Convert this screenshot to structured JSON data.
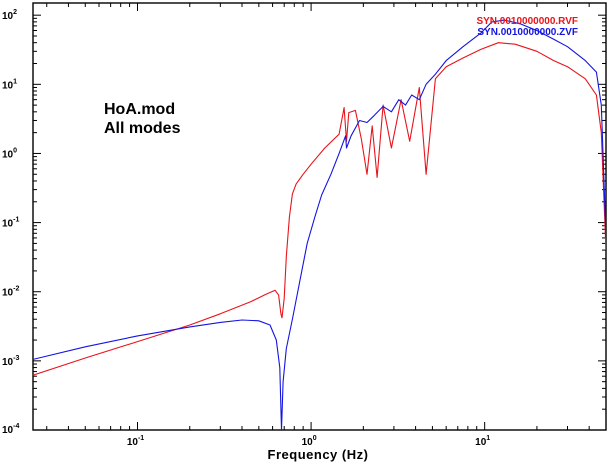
{
  "chart_data": {
    "type": "line",
    "title": "",
    "xlabel": "Frequency (Hz)",
    "ylabel": "",
    "x_scale": "log",
    "y_scale": "log",
    "xlim": [
      0.025,
      50
    ],
    "ylim": [
      0.0001,
      150
    ],
    "grid": false,
    "legend_position": "top-right",
    "annotations": [
      "HoA.mod",
      "All modes"
    ],
    "x_ticks": [
      {
        "base": "10",
        "exp": "-1",
        "value": 0.1
      },
      {
        "base": "10",
        "exp": "0",
        "value": 1
      },
      {
        "base": "10",
        "exp": "1",
        "value": 10
      }
    ],
    "y_ticks": [
      {
        "base": "10",
        "exp": "2",
        "value": 100
      },
      {
        "base": "10",
        "exp": "1",
        "value": 10
      },
      {
        "base": "10",
        "exp": "0",
        "value": 1
      },
      {
        "base": "10",
        "exp": "-1",
        "value": 0.1
      },
      {
        "base": "10",
        "exp": "-2",
        "value": 0.01
      },
      {
        "base": "10",
        "exp": "-3",
        "value": 0.001
      },
      {
        "base": "10",
        "exp": "-4",
        "value": 0.0001
      }
    ],
    "series": [
      {
        "name": "SYN.0010000000.RVF",
        "color": "#e8141c",
        "points": [
          [
            0.025,
            0.00062
          ],
          [
            0.05,
            0.0011
          ],
          [
            0.1,
            0.0019
          ],
          [
            0.2,
            0.0033
          ],
          [
            0.3,
            0.0048
          ],
          [
            0.45,
            0.0072
          ],
          [
            0.55,
            0.0092
          ],
          [
            0.62,
            0.0105
          ],
          [
            0.65,
            0.009
          ],
          [
            0.67,
            0.0048
          ],
          [
            0.68,
            0.0042
          ],
          [
            0.7,
            0.008
          ],
          [
            0.72,
            0.032
          ],
          [
            0.75,
            0.12
          ],
          [
            0.78,
            0.26
          ],
          [
            0.82,
            0.36
          ],
          [
            0.9,
            0.5
          ],
          [
            1.0,
            0.7
          ],
          [
            1.2,
            1.2
          ],
          [
            1.45,
            1.9
          ],
          [
            1.55,
            4.6
          ],
          [
            1.6,
            1.5
          ],
          [
            1.65,
            3.9
          ],
          [
            1.8,
            4.2
          ],
          [
            1.95,
            1.6
          ],
          [
            2.1,
            0.5
          ],
          [
            2.25,
            2.5
          ],
          [
            2.4,
            0.45
          ],
          [
            2.6,
            5.0
          ],
          [
            2.9,
            1.2
          ],
          [
            3.3,
            6.0
          ],
          [
            3.7,
            1.5
          ],
          [
            4.2,
            9.0
          ],
          [
            4.6,
            0.5
          ],
          [
            5.2,
            12.0
          ],
          [
            6.0,
            18.0
          ],
          [
            7.5,
            24.0
          ],
          [
            9.5,
            32.0
          ],
          [
            12.0,
            40.0
          ],
          [
            15.0,
            38.0
          ],
          [
            20.0,
            30.0
          ],
          [
            25.0,
            22.0
          ],
          [
            30.0,
            18.0
          ],
          [
            38.0,
            12.0
          ],
          [
            44.0,
            7.0
          ],
          [
            47.0,
            2.0
          ],
          [
            50.0,
            0.04
          ]
        ]
      },
      {
        "name": "SYN.0010000000.ZVF",
        "color": "#1414e0",
        "points": [
          [
            0.025,
            0.00105
          ],
          [
            0.05,
            0.0016
          ],
          [
            0.1,
            0.0023
          ],
          [
            0.2,
            0.0031
          ],
          [
            0.3,
            0.0036
          ],
          [
            0.4,
            0.0039
          ],
          [
            0.5,
            0.0038
          ],
          [
            0.58,
            0.0033
          ],
          [
            0.63,
            0.002
          ],
          [
            0.66,
            0.0008
          ],
          [
            0.675,
            0.0001
          ],
          [
            0.69,
            0.0005
          ],
          [
            0.72,
            0.0015
          ],
          [
            0.78,
            0.004
          ],
          [
            0.85,
            0.012
          ],
          [
            0.95,
            0.05
          ],
          [
            1.05,
            0.12
          ],
          [
            1.15,
            0.25
          ],
          [
            1.3,
            0.5
          ],
          [
            1.45,
            1.0
          ],
          [
            1.58,
            1.8
          ],
          [
            1.6,
            1.2
          ],
          [
            1.7,
            1.8
          ],
          [
            1.9,
            3.0
          ],
          [
            2.1,
            2.8
          ],
          [
            2.3,
            3.5
          ],
          [
            2.6,
            4.8
          ],
          [
            2.9,
            4.0
          ],
          [
            3.2,
            6.0
          ],
          [
            3.5,
            5.0
          ],
          [
            3.8,
            7.0
          ],
          [
            4.2,
            6.0
          ],
          [
            4.6,
            10.0
          ],
          [
            5.2,
            14.0
          ],
          [
            6.0,
            22.0
          ],
          [
            7.5,
            35.0
          ],
          [
            9.5,
            55.0
          ],
          [
            11.0,
            80.0
          ],
          [
            13.0,
            85.0
          ],
          [
            16.0,
            75.0
          ],
          [
            20.0,
            60.0
          ],
          [
            25.0,
            45.0
          ],
          [
            30.0,
            35.0
          ],
          [
            38.0,
            22.0
          ],
          [
            44.0,
            15.0
          ],
          [
            47.0,
            5.0
          ],
          [
            50.0,
            0.06
          ]
        ]
      }
    ]
  }
}
